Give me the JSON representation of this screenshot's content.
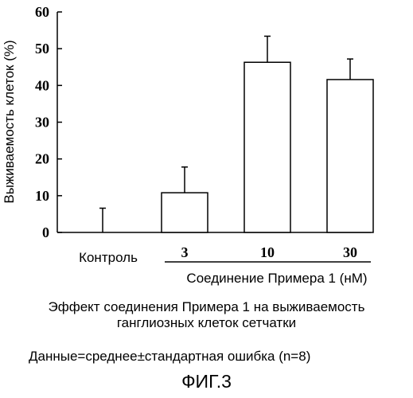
{
  "chart_data": {
    "type": "bar",
    "ylabel": "Выживаемость клеток (%)",
    "xlabel": "Соединение Примера 1 (нМ)",
    "ylim": [
      0,
      60
    ],
    "yticks": [
      0,
      10,
      20,
      30,
      40,
      50,
      60
    ],
    "categories": [
      "Контроль",
      "3",
      "10",
      "30"
    ],
    "values": [
      0,
      10.8,
      46.3,
      41.6
    ],
    "errors": [
      6.6,
      7.0,
      7.1,
      5.6
    ],
    "bar_fill": "#ffffff",
    "bar_stroke": "#000000"
  },
  "caption": {
    "line1": "Эффект соединения Примера 1 на выживаемость",
    "line2": "ганглиозных клеток сетчатки"
  },
  "footnote": "Данные=среднее±стандартная ошибка (n=8)",
  "figure_label": "ФИГ.3"
}
